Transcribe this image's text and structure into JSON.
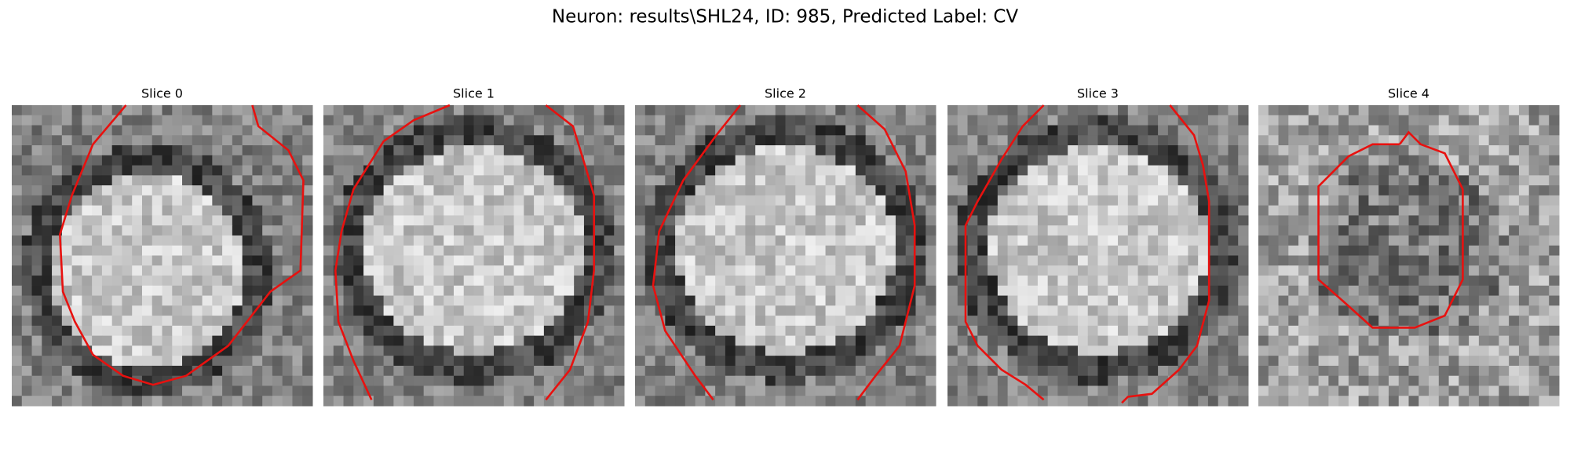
{
  "title": "Neuron: results\\SHL24, ID: 985, Predicted Label: CV",
  "panels": [
    {
      "title": "Slice 0"
    },
    {
      "title": "Slice 1"
    },
    {
      "title": "Slice 2"
    },
    {
      "title": "Slice 3"
    },
    {
      "title": "Slice 4"
    }
  ]
}
